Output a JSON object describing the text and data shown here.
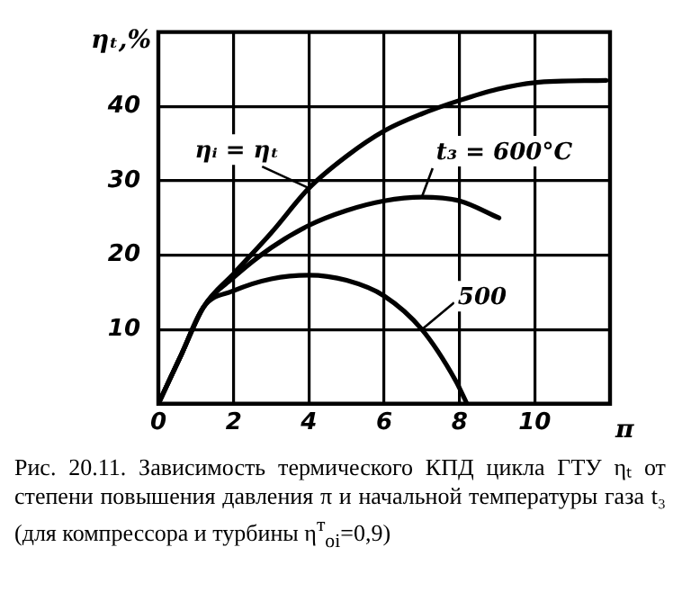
{
  "chart_data": {
    "type": "line",
    "xlabel": "π",
    "ylabel": "ηₜ,%",
    "xlim": [
      0,
      12
    ],
    "xticks": [
      0,
      2,
      4,
      6,
      8,
      10
    ],
    "ylim": [
      0,
      50
    ],
    "yticks": [
      10,
      20,
      30,
      40
    ],
    "grid": true,
    "legend": false,
    "marker": "none",
    "line_style": "solid",
    "series": [
      {
        "name": "ηᵢ = ηₜ",
        "color": "#000000",
        "x": [
          0,
          0.6,
          1.2,
          2,
          3,
          4,
          5,
          6,
          7,
          8,
          9,
          10,
          11.9
        ],
        "values": [
          0,
          6.5,
          13,
          17.5,
          23,
          29,
          33.3,
          36.7,
          39,
          40.8,
          42.3,
          43.2,
          43.5
        ]
      },
      {
        "name": "t₃ = 600°C",
        "color": "#000000",
        "x": [
          0,
          0.6,
          1.2,
          2,
          3,
          4,
          5,
          6,
          7,
          8,
          9.05
        ],
        "values": [
          0,
          6.5,
          13,
          17,
          21,
          24,
          26,
          27.3,
          27.8,
          27.3,
          25
        ]
      },
      {
        "name": "500",
        "color": "#000000",
        "x": [
          0,
          0.6,
          1.2,
          2,
          3,
          4,
          5,
          6,
          7,
          7.9,
          8.2
        ],
        "values": [
          0,
          6.5,
          13,
          15.2,
          16.8,
          17.3,
          16.6,
          14.5,
          10,
          3.1,
          0
        ]
      }
    ],
    "annotations": [
      "Рис. 20.11. Зависимость термического КПД цикла ГТУ ηₜ от степени повышения давления π и начальной температуры газа t₃ (для компрессора и турбины η$^{т}$$_{oi}$=0,9)"
    ]
  }
}
